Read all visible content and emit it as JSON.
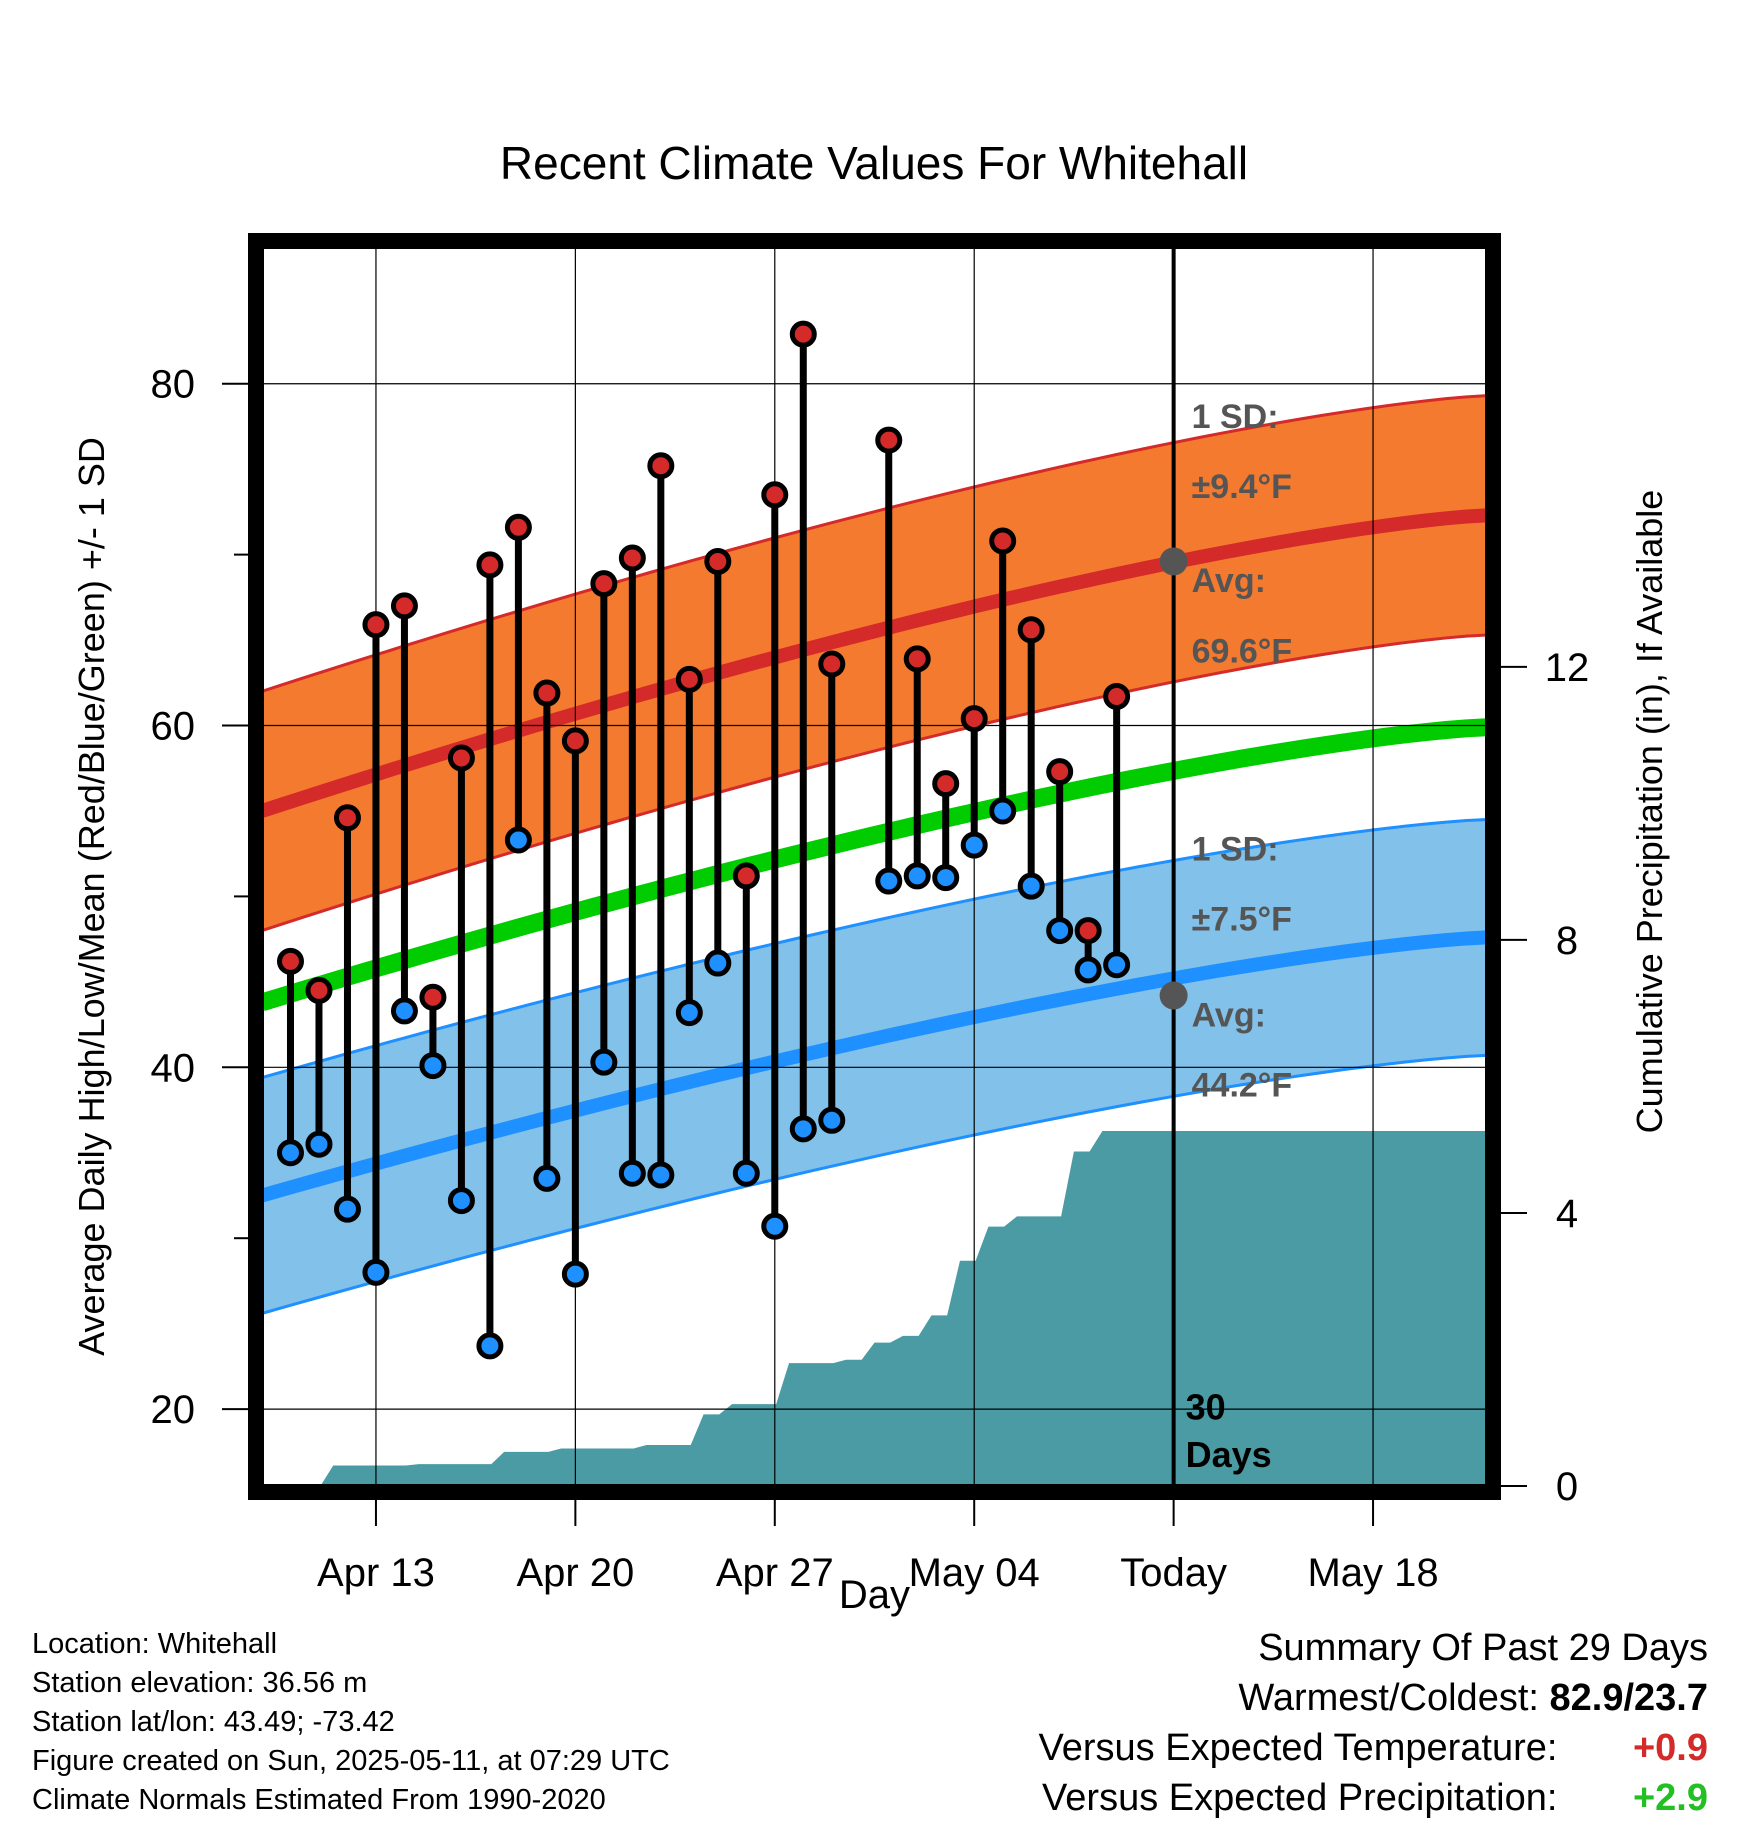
{
  "chart_data": {
    "type": "line",
    "title": "Recent Climate Values For Whitehall",
    "xlabel": "Day",
    "ylabel": "Average Daily High/Low/Mean (Red/Blue/Green) +/- 1 SD",
    "y2label": "Cumulative Precipitation (in), If Available",
    "ylim": [
      15.5,
      88
    ],
    "y2lim": [
      0,
      18.15
    ],
    "xlim": [
      "2025-04-09",
      "2025-05-22"
    ],
    "x_ticks": [
      "Apr 13",
      "Apr 20",
      "Apr 27",
      "May 04",
      "Today",
      "May 18"
    ],
    "y_ticks": [
      20,
      40,
      60,
      80
    ],
    "y2_ticks": [
      0,
      4,
      8,
      12
    ],
    "grid": true,
    "today": "2025-05-11",
    "today_label": "30 Days",
    "dates": [
      "2025-04-10",
      "2025-04-11",
      "2025-04-12",
      "2025-04-13",
      "2025-04-14",
      "2025-04-15",
      "2025-04-16",
      "2025-04-17",
      "2025-04-18",
      "2025-04-19",
      "2025-04-20",
      "2025-04-21",
      "2025-04-22",
      "2025-04-23",
      "2025-04-24",
      "2025-04-25",
      "2025-04-26",
      "2025-04-27",
      "2025-04-28",
      "2025-04-29",
      "2025-04-30",
      "2025-05-01",
      "2025-05-02",
      "2025-05-03",
      "2025-05-04",
      "2025-05-05",
      "2025-05-06",
      "2025-05-07",
      "2025-05-08",
      "2025-05-09",
      "2025-05-10"
    ],
    "series": [
      {
        "name": "High",
        "color": "#d42a2a",
        "values": [
          46.2,
          44.5,
          54.6,
          65.9,
          67.0,
          44.1,
          58.1,
          69.4,
          71.6,
          61.9,
          59.1,
          68.3,
          69.8,
          75.2,
          62.7,
          69.6,
          51.2,
          73.5,
          82.9,
          63.6,
          null,
          76.7,
          63.9,
          56.6,
          60.4,
          70.8,
          65.6,
          57.3,
          48.0,
          61.7,
          null
        ]
      },
      {
        "name": "Low",
        "color": "#1e90ff",
        "values": [
          35.0,
          35.5,
          31.7,
          28.0,
          43.3,
          40.1,
          32.2,
          23.7,
          53.3,
          33.5,
          27.9,
          40.3,
          33.8,
          33.7,
          43.2,
          46.1,
          33.8,
          30.7,
          36.4,
          36.9,
          null,
          50.9,
          51.2,
          51.1,
          53.0,
          55.0,
          50.6,
          48.0,
          45.7,
          46.0,
          null
        ]
      },
      {
        "name": "Cumulative Precipitation",
        "color": "#4a9ba3",
        "values": [
          0.0,
          0.3,
          0.3,
          0.3,
          0.32,
          0.32,
          0.32,
          0.5,
          0.5,
          0.55,
          0.55,
          0.55,
          0.6,
          0.6,
          1.05,
          1.2,
          1.2,
          1.8,
          1.8,
          1.85,
          2.1,
          2.2,
          2.5,
          3.3,
          3.8,
          3.95,
          3.95,
          4.9,
          5.2,
          5.2,
          5.2
        ]
      }
    ],
    "normals": {
      "high_start": 55.0,
      "high_end": 72.3,
      "low_start": 32.5,
      "low_end": 47.6,
      "mean_start": 43.8,
      "mean_end": 59.9,
      "high_sd": 7.0,
      "low_sd": 6.9
    },
    "annotations": {
      "high_sd_line1": "1 SD:",
      "high_sd_line2": "±9.4°F",
      "high_avg_line1": "Avg:",
      "high_avg_line2": "69.6°F",
      "low_sd_line1": "1 SD:",
      "low_sd_line2": "±7.5°F",
      "low_avg_line1": "Avg:",
      "low_avg_line2": "44.2°F",
      "high_avg_value": 69.6,
      "low_avg_value": 44.2
    },
    "colors": {
      "high_band": "#f47a2f",
      "high_line": "#d42a2a",
      "low_band": "#82c1e9",
      "low_line": "#1e90ff",
      "mean_line": "#00cc00",
      "precip": "#4a9ba3",
      "marker_gray": "#555555"
    }
  },
  "info": {
    "location": "Location: Whitehall",
    "elevation": "Station elevation: 36.56 m",
    "latlon": "Station lat/lon: 43.49; -73.42",
    "created": "Figure created on Sun, 2025-05-11, at 07:29 UTC",
    "normals": "Climate Normals Estimated From 1990-2020"
  },
  "summary": {
    "title": "Summary Of Past 29 Days",
    "warm_cold_label": "Warmest/Coldest:",
    "warm_cold_value": "82.9/23.7",
    "temp_label": "Versus Expected Temperature:",
    "temp_value": "+0.9",
    "precip_label": "Versus Expected Precipitation:",
    "precip_value": "+2.9"
  }
}
